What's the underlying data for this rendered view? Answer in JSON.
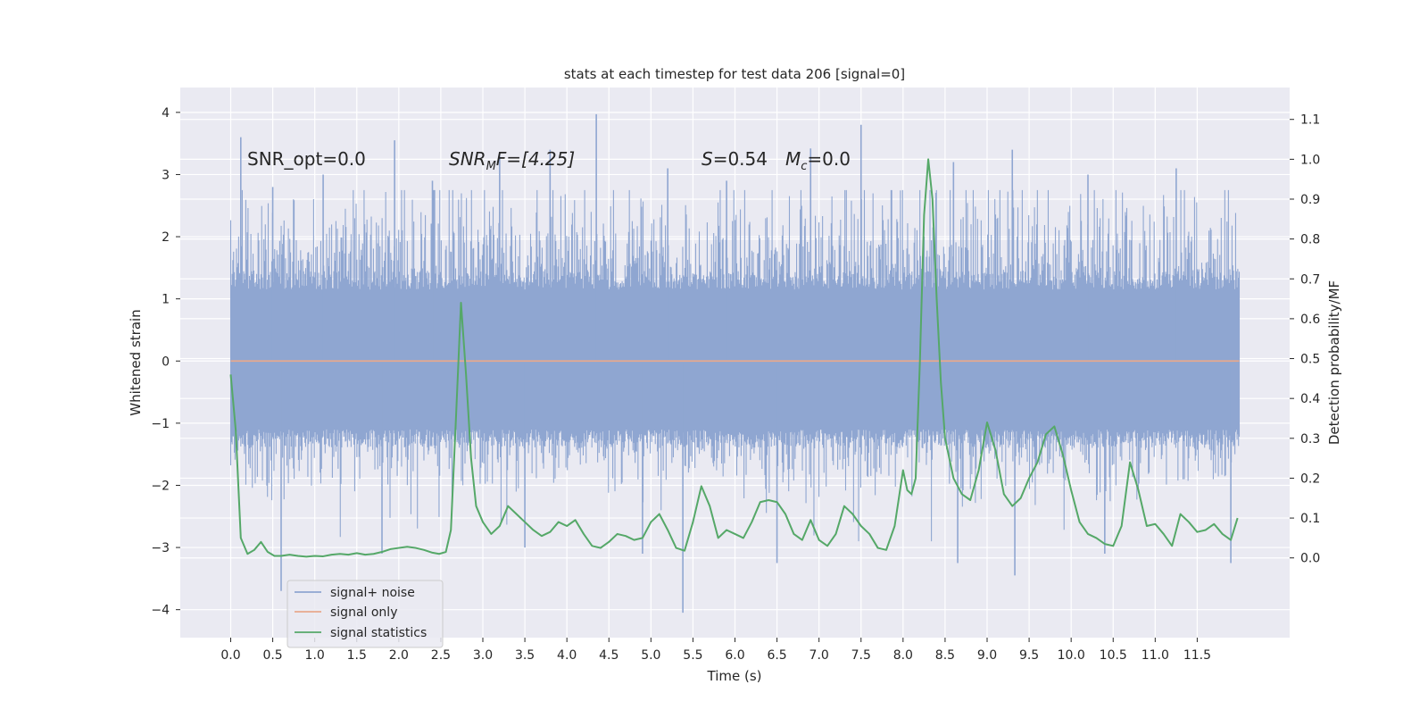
{
  "chart_data": {
    "type": "line",
    "title": "stats at each timestep for test data 206 [signal=0]",
    "xlabel": "Time (s)",
    "ylabel_left": "Whitened strain",
    "ylabel_right": "Detection probability/MF",
    "xlim": [
      -0.6,
      12.6
    ],
    "ylim_left": [
      -4.45,
      4.4
    ],
    "ylim_right": [
      -0.2,
      1.18
    ],
    "x_ticks": [
      "0.0",
      "0.5",
      "1.0",
      "1.5",
      "2.0",
      "2.5",
      "3.0",
      "3.5",
      "4.0",
      "4.5",
      "5.0",
      "5.5",
      "6.0",
      "6.5",
      "7.0",
      "7.5",
      "8.0",
      "8.5",
      "9.0",
      "9.5",
      "10.0",
      "10.5",
      "11.0",
      "11.5"
    ],
    "y_left_ticks": [
      "4",
      "3",
      "2",
      "1",
      "0",
      "−1",
      "−2",
      "−3",
      "−4"
    ],
    "y_right_ticks": [
      "1.1",
      "1.0",
      "0.9",
      "0.8",
      "0.7",
      "0.6",
      "0.5",
      "0.4",
      "0.3",
      "0.2",
      "0.1",
      "0.0"
    ],
    "grid": true,
    "legend_position": "lower-left",
    "annotations": {
      "snr_opt": "SNR_opt=0.0",
      "snr_mf_base": "SNR",
      "snr_mf_sub": "M",
      "snr_mf_rest": "F=[4.25]",
      "s_label": "S",
      "s_value": "=0.54",
      "mc_base": "M",
      "mc_sub": "c",
      "mc_value": "=0.0"
    },
    "series": [
      {
        "name": "signal+ noise",
        "color": "#8fa6d1",
        "axis": "left",
        "x_range": [
          0.0,
          12.0
        ],
        "typical_envelope": [
          -1.4,
          1.8
        ],
        "peaks": [
          {
            "x": 0.12,
            "y": 3.6
          },
          {
            "x": 0.5,
            "y": 2.8
          },
          {
            "x": 1.1,
            "y": 3.0
          },
          {
            "x": 1.95,
            "y": 3.55
          },
          {
            "x": 2.4,
            "y": 2.9
          },
          {
            "x": 3.2,
            "y": 3.3
          },
          {
            "x": 3.8,
            "y": 3.4
          },
          {
            "x": 4.35,
            "y": 3.97
          },
          {
            "x": 5.2,
            "y": 3.1
          },
          {
            "x": 5.9,
            "y": 2.9
          },
          {
            "x": 6.9,
            "y": 3.42
          },
          {
            "x": 7.5,
            "y": 3.8
          },
          {
            "x": 8.6,
            "y": 3.2
          },
          {
            "x": 9.3,
            "y": 3.4
          },
          {
            "x": 10.2,
            "y": 3.0
          },
          {
            "x": 11.25,
            "y": 3.1
          }
        ],
        "troughs": [
          {
            "x": 0.6,
            "y": -3.7
          },
          {
            "x": 1.8,
            "y": -3.1
          },
          {
            "x": 3.5,
            "y": -3.0
          },
          {
            "x": 4.9,
            "y": -3.1
          },
          {
            "x": 5.38,
            "y": -4.05
          },
          {
            "x": 6.5,
            "y": -3.25
          },
          {
            "x": 8.65,
            "y": -3.25
          },
          {
            "x": 9.33,
            "y": -3.45
          },
          {
            "x": 10.4,
            "y": -3.1
          },
          {
            "x": 11.9,
            "y": -3.25
          }
        ]
      },
      {
        "name": "signal only",
        "color": "#e8a98e",
        "axis": "left",
        "x": [
          0.0,
          12.0
        ],
        "y": [
          0.0,
          0.0
        ]
      },
      {
        "name": "signal statistics",
        "color": "#55a868",
        "axis": "right",
        "x": [
          0.0,
          0.06,
          0.12,
          0.2,
          0.28,
          0.36,
          0.44,
          0.52,
          0.6,
          0.7,
          0.8,
          0.9,
          1.0,
          1.1,
          1.2,
          1.3,
          1.4,
          1.5,
          1.6,
          1.7,
          1.8,
          1.9,
          2.0,
          2.1,
          2.2,
          2.3,
          2.4,
          2.48,
          2.56,
          2.62,
          2.68,
          2.74,
          2.8,
          2.86,
          2.92,
          3.0,
          3.1,
          3.2,
          3.3,
          3.4,
          3.5,
          3.6,
          3.7,
          3.8,
          3.9,
          4.0,
          4.1,
          4.2,
          4.3,
          4.4,
          4.5,
          4.6,
          4.7,
          4.8,
          4.9,
          5.0,
          5.1,
          5.2,
          5.3,
          5.4,
          5.5,
          5.6,
          5.7,
          5.8,
          5.9,
          6.0,
          6.1,
          6.2,
          6.3,
          6.4,
          6.5,
          6.6,
          6.7,
          6.8,
          6.9,
          7.0,
          7.1,
          7.2,
          7.3,
          7.4,
          7.5,
          7.6,
          7.7,
          7.8,
          7.9,
          8.0,
          8.05,
          8.1,
          8.15,
          8.2,
          8.25,
          8.3,
          8.35,
          8.4,
          8.45,
          8.5,
          8.6,
          8.7,
          8.8,
          8.9,
          9.0,
          9.1,
          9.2,
          9.3,
          9.4,
          9.5,
          9.6,
          9.7,
          9.8,
          9.9,
          10.0,
          10.1,
          10.2,
          10.3,
          10.4,
          10.5,
          10.6,
          10.7,
          10.8,
          10.9,
          11.0,
          11.1,
          11.2,
          11.3,
          11.4,
          11.5,
          11.6,
          11.7,
          11.8,
          11.9,
          11.98
        ],
        "y": [
          0.46,
          0.32,
          0.05,
          0.01,
          0.02,
          0.04,
          0.015,
          0.005,
          0.005,
          0.008,
          0.005,
          0.003,
          0.005,
          0.004,
          0.008,
          0.01,
          0.008,
          0.012,
          0.008,
          0.01,
          0.015,
          0.022,
          0.025,
          0.028,
          0.025,
          0.02,
          0.013,
          0.01,
          0.015,
          0.07,
          0.35,
          0.64,
          0.46,
          0.25,
          0.13,
          0.09,
          0.06,
          0.08,
          0.13,
          0.11,
          0.09,
          0.07,
          0.055,
          0.065,
          0.09,
          0.08,
          0.095,
          0.06,
          0.03,
          0.025,
          0.04,
          0.06,
          0.055,
          0.045,
          0.05,
          0.09,
          0.11,
          0.07,
          0.025,
          0.018,
          0.09,
          0.18,
          0.13,
          0.05,
          0.07,
          0.06,
          0.05,
          0.09,
          0.14,
          0.145,
          0.14,
          0.11,
          0.06,
          0.045,
          0.095,
          0.045,
          0.03,
          0.06,
          0.13,
          0.11,
          0.08,
          0.06,
          0.025,
          0.02,
          0.08,
          0.22,
          0.17,
          0.16,
          0.2,
          0.49,
          0.86,
          1.0,
          0.9,
          0.65,
          0.44,
          0.3,
          0.2,
          0.16,
          0.145,
          0.22,
          0.34,
          0.27,
          0.16,
          0.13,
          0.15,
          0.2,
          0.24,
          0.31,
          0.33,
          0.26,
          0.17,
          0.09,
          0.06,
          0.05,
          0.035,
          0.03,
          0.08,
          0.24,
          0.17,
          0.08,
          0.085,
          0.06,
          0.03,
          0.11,
          0.09,
          0.065,
          0.07,
          0.085,
          0.06,
          0.045,
          0.1
        ]
      }
    ]
  }
}
